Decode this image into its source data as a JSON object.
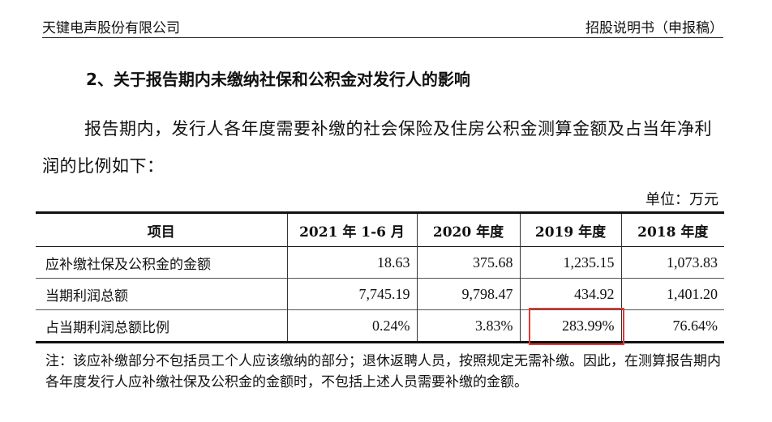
{
  "header": {
    "company": "天键电声股份有限公司",
    "doc_type": "招股说明书（申报稿）"
  },
  "section_heading": "2、关于报告期内未缴纳社保和公积金对发行人的影响",
  "paragraph": "报告期内，发行人各年度需要补缴的社会保险及住房公积金测算金额及占当年净利润的比例如下：",
  "unit": "单位：万元",
  "table": {
    "columns": [
      "项目",
      "2021 年 1-6 月",
      "2020 年度",
      "2019 年度",
      "2018 年度"
    ],
    "rows": [
      {
        "label": "应补缴社保及公积金的金额",
        "values": [
          "18.63",
          "375.68",
          "1,235.15",
          "1,073.83"
        ]
      },
      {
        "label": "当期利润总额",
        "values": [
          "7,745.19",
          "9,798.47",
          "434.92",
          "1,401.20"
        ]
      },
      {
        "label": "占当期利润总额比例",
        "values": [
          "0.24%",
          "3.83%",
          "283.99%",
          "76.64%"
        ]
      }
    ],
    "highlight_color": "#e53935"
  },
  "note": "注：该应补缴部分不包括员工个人应该缴纳的部分；退休返聘人员，按照规定无需补缴。因此，在测算报告期内各年度发行人应补缴社保及公积金的金额时，不包括上述人员需要补缴的金额。"
}
